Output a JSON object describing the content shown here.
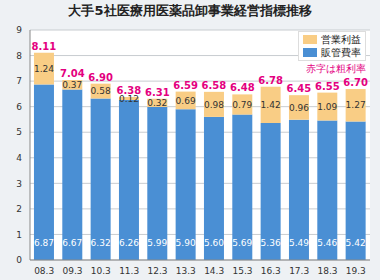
{
  "chart_data": {
    "type": "bar",
    "title": "大手5社医療用医薬品卸事業経営指標推移",
    "annotation": "赤字は粗利率",
    "categories": [
      "08.3",
      "09.3",
      "10.3",
      "11.3",
      "12.3",
      "13.3",
      "14.3",
      "15.3",
      "16.3",
      "17.3",
      "18.3",
      "19.3"
    ],
    "series": [
      {
        "name": "販管費率",
        "color": "#4a8fd4",
        "values": [
          6.87,
          6.67,
          6.32,
          6.26,
          5.99,
          5.9,
          5.6,
          5.69,
          5.36,
          5.49,
          5.46,
          5.42
        ],
        "value_labels": [
          "6.87",
          "6.67",
          "6.32",
          "6.26",
          "5.99",
          "5.90",
          "5.60",
          "5.69",
          "5.36",
          "5.49",
          "5.46",
          "5.42"
        ]
      },
      {
        "name": "営業利益",
        "color": "#f9cd85",
        "values": [
          1.24,
          0.37,
          0.58,
          0.12,
          0.32,
          0.69,
          0.98,
          0.79,
          1.42,
          0.96,
          1.09,
          1.27
        ],
        "value_labels": [
          "1.24",
          "0.37",
          "0.58",
          "0.12",
          "0.32",
          "0.69",
          "0.98",
          "0.79",
          "1.42",
          "0.96",
          "1.09",
          "1.27"
        ]
      }
    ],
    "totals": [
      8.11,
      7.04,
      6.9,
      6.38,
      6.31,
      6.59,
      6.58,
      6.48,
      6.78,
      6.45,
      6.55,
      6.7
    ],
    "total_labels": [
      "8.11",
      "7.04",
      "6.90",
      "6.38",
      "6.31",
      "6.59",
      "6.58",
      "6.48",
      "6.78",
      "6.45",
      "6.55",
      "6.70"
    ],
    "ylim": [
      0,
      9
    ],
    "yticks": [
      0,
      1,
      2,
      3,
      4,
      5,
      6,
      7,
      8,
      9
    ],
    "grid": true,
    "stacked": true,
    "data_labels": true,
    "legend": "upper right"
  }
}
